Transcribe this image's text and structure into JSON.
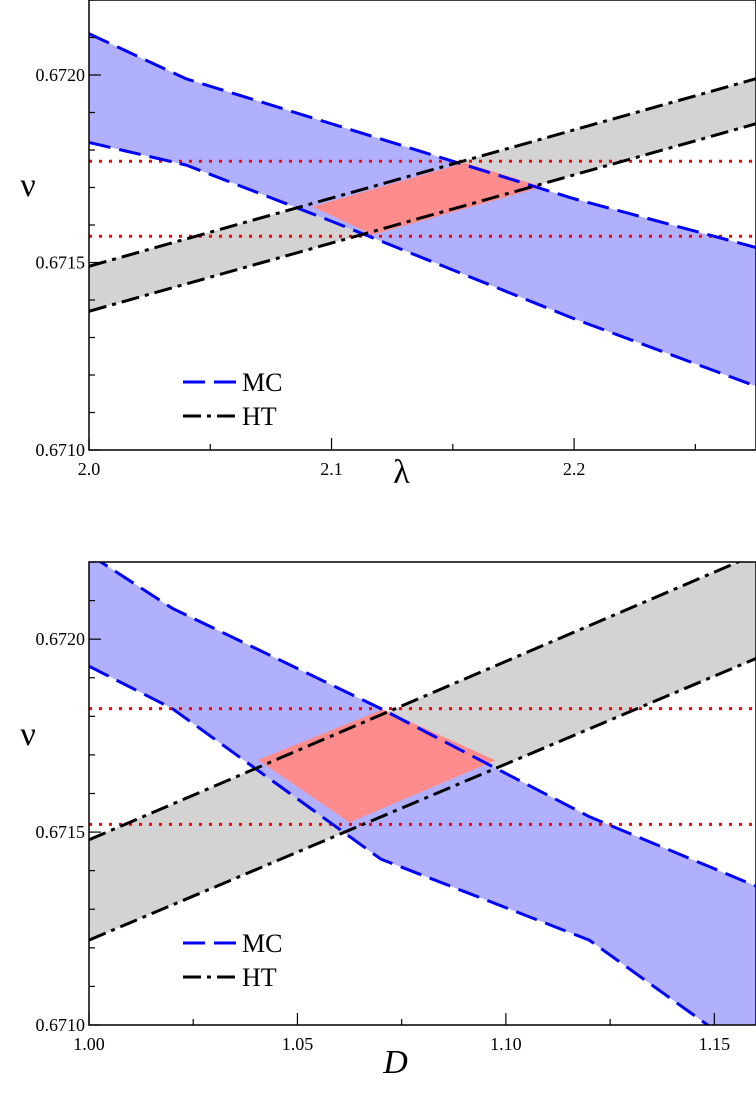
{
  "chart_data": [
    {
      "type": "area",
      "xlabel": "λ",
      "ylabel": "ν",
      "xlim": [
        2.0,
        2.275
      ],
      "ylim": [
        0.671,
        0.6722
      ],
      "x_ticks": [
        "2.0",
        "2.1",
        "2.2"
      ],
      "y_ticks": [
        "0.6710",
        "0.6715",
        "0.6720"
      ],
      "grid": false,
      "legend": {
        "placement": "lower-left",
        "entries": [
          "MC",
          "HT"
        ]
      },
      "bands": [
        {
          "name": "MC",
          "fill": "#b0b0ff",
          "stroke": "#0000ff",
          "dash": "dashed",
          "upper": [
            [
              2.0,
              0.67211
            ],
            [
              2.04,
              0.67199
            ],
            [
              2.1,
              0.67187
            ],
            [
              2.2,
              0.67167
            ],
            [
              2.275,
              0.67154
            ]
          ],
          "lower": [
            [
              2.0,
              0.67182
            ],
            [
              2.04,
              0.67176
            ],
            [
              2.1,
              0.67161
            ],
            [
              2.2,
              0.67135
            ],
            [
              2.275,
              0.67117
            ]
          ]
        },
        {
          "name": "HT",
          "fill": "#d3d3d3",
          "stroke": "#000000",
          "dash": "dash-dot",
          "upper": [
            [
              2.0,
              0.67149
            ],
            [
              2.275,
              0.67199
            ]
          ],
          "lower": [
            [
              2.0,
              0.67137
            ],
            [
              2.275,
              0.67187
            ]
          ]
        }
      ],
      "overlap": {
        "fill": "#ff8c8c",
        "polygon": [
          [
            2.092,
            0.671649
          ],
          [
            2.155,
            0.671766
          ],
          [
            2.187,
            0.671702
          ],
          [
            2.117,
            0.671574
          ]
        ]
      },
      "hlines": {
        "color": "#ff0000",
        "style": "dotted",
        "values": [
          0.67177,
          0.67157
        ]
      }
    },
    {
      "type": "area",
      "xlabel": "D",
      "ylabel": "ν",
      "xlim": [
        1.0,
        1.16
      ],
      "ylim": [
        0.671,
        0.6722
      ],
      "x_ticks": [
        "1.00",
        "1.05",
        "1.10",
        "1.15"
      ],
      "y_ticks": [
        "0.6710",
        "0.6715",
        "0.6720"
      ],
      "grid": false,
      "legend": {
        "placement": "lower-left",
        "entries": [
          "MC",
          "HT"
        ]
      },
      "bands": [
        {
          "name": "MC",
          "fill": "#b0b0ff",
          "stroke": "#0000ff",
          "dash": "dashed",
          "upper": [
            [
              1.0,
              0.67222
            ],
            [
              1.02,
              0.67208
            ],
            [
              1.07,
              0.67182
            ],
            [
              1.12,
              0.67154
            ],
            [
              1.16,
              0.67136
            ]
          ],
          "lower": [
            [
              1.0,
              0.67193
            ],
            [
              1.02,
              0.67182
            ],
            [
              1.07,
              0.67143
            ],
            [
              1.12,
              0.67122
            ],
            [
              1.16,
              0.67091
            ]
          ]
        },
        {
          "name": "HT",
          "fill": "#d3d3d3",
          "stroke": "#000000",
          "dash": "dash-dot",
          "upper": [
            [
              1.0,
              0.67148
            ],
            [
              1.16,
              0.67222
            ]
          ],
          "lower": [
            [
              1.0,
              0.67122
            ],
            [
              1.16,
              0.67195
            ]
          ]
        }
      ],
      "overlap": {
        "fill": "#ff8c8c",
        "polygon": [
          [
            1.0405,
            0.671687
          ],
          [
            1.0705,
            0.671818
          ],
          [
            1.0975,
            0.671686
          ],
          [
            1.0625,
            0.671525
          ]
        ]
      },
      "hlines": {
        "color": "#ff0000",
        "style": "dotted",
        "values": [
          0.67182,
          0.67152
        ]
      }
    }
  ]
}
